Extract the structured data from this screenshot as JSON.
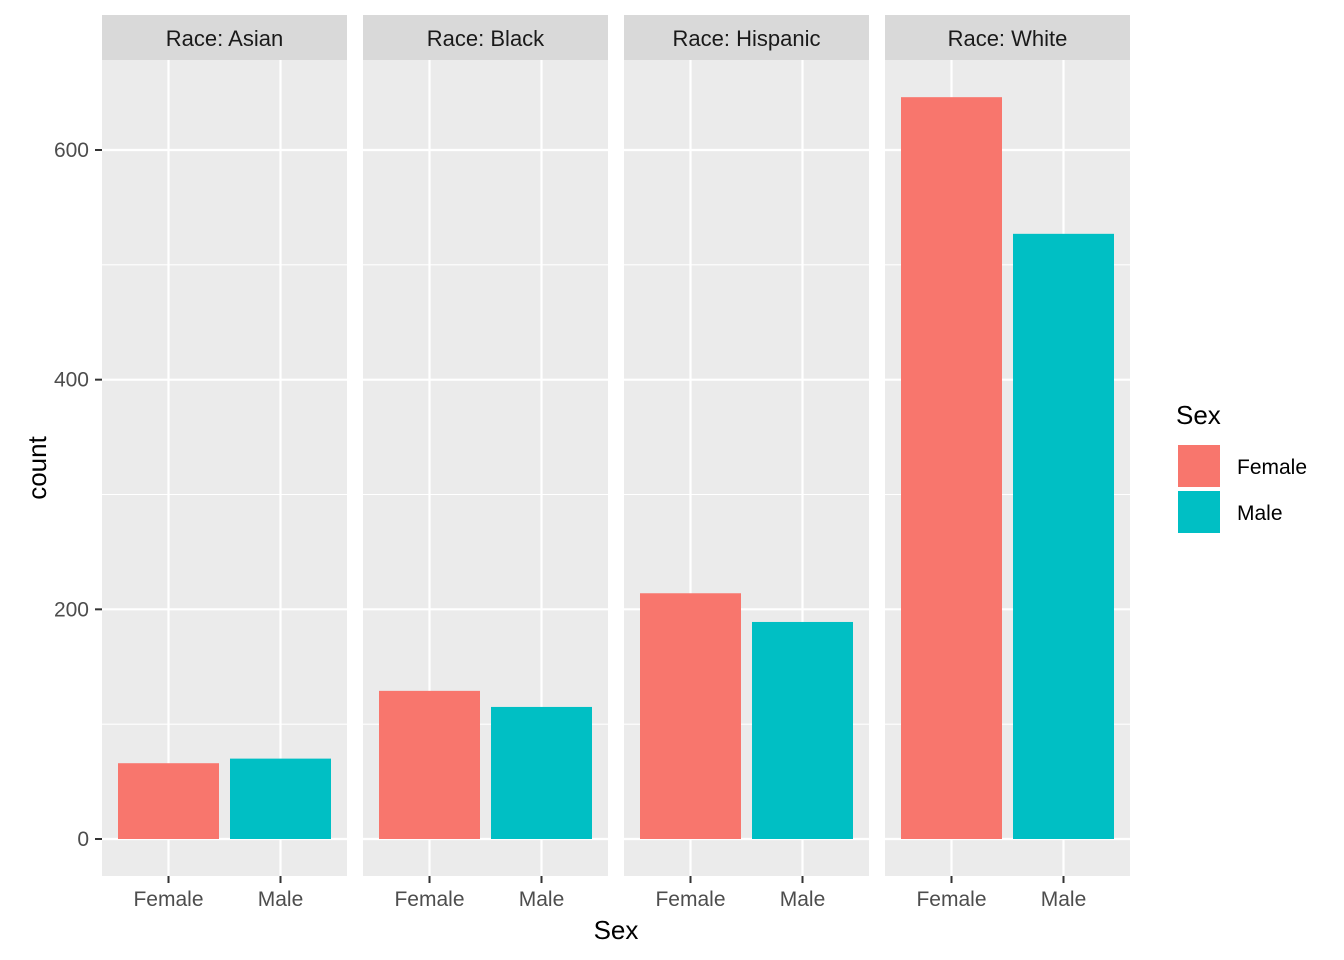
{
  "chart_data": {
    "type": "bar",
    "title": "",
    "xlabel": "Sex",
    "ylabel": "count",
    "ylim": [
      -32,
      680
    ],
    "yticks": [
      0,
      200,
      400,
      600
    ],
    "grid": true,
    "legend_placement": "right",
    "categories": [
      "Female",
      "Male"
    ],
    "colors": {
      "Female": "#F8766D",
      "Male": "#00BFC4"
    },
    "legend": {
      "title": "Sex",
      "entries": [
        {
          "label": "Female",
          "color": "#F8766D"
        },
        {
          "label": "Male",
          "color": "#00BFC4"
        }
      ]
    },
    "facets": [
      {
        "label": "Race: Asian",
        "values": [
          66,
          70
        ]
      },
      {
        "label": "Race: Black",
        "values": [
          129,
          115
        ]
      },
      {
        "label": "Race: Hispanic",
        "values": [
          214,
          189
        ]
      },
      {
        "label": "Race: White",
        "values": [
          646,
          527
        ]
      }
    ]
  }
}
